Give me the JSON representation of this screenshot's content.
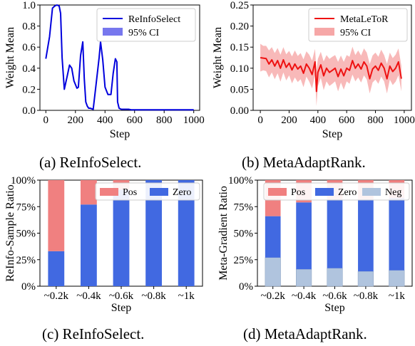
{
  "captions": {
    "a": "(a) ReInfoSelect.",
    "b": "(b) MetaAdaptRank.",
    "c": "(c) ReInfoSelect.",
    "d": "(d) MetaAdaptRank."
  },
  "chart_data": [
    {
      "id": "a",
      "type": "line",
      "xlabel": "Step",
      "ylabel": "Weight Mean",
      "xlim": [
        -40,
        1040
      ],
      "ylim": [
        0,
        1.0
      ],
      "xticks": [
        0,
        200,
        400,
        600,
        800,
        1000
      ],
      "yticks": [
        0.0,
        0.2,
        0.4,
        0.6,
        0.8,
        1.0
      ],
      "ytick_labels": [
        "0.0",
        "0.2",
        "0.4",
        "0.6",
        "0.8",
        "1.0"
      ],
      "legend": "top-right",
      "colors": {
        "line": "#0000dd",
        "band": "#7777ee"
      },
      "series": [
        {
          "name": "ReInfoSelect",
          "band_name": "95% CI",
          "x": [
            0,
            25,
            45,
            60,
            75,
            90,
            100,
            110,
            125,
            145,
            160,
            175,
            190,
            210,
            220,
            235,
            250,
            260,
            270,
            280,
            290,
            300,
            320,
            340,
            360,
            370,
            385,
            400,
            420,
            440,
            455,
            470,
            480,
            485,
            495,
            510,
            525,
            540,
            560,
            580,
            600,
            650,
            700,
            750,
            800,
            850,
            900,
            950,
            1000
          ],
          "y": [
            0.49,
            0.7,
            0.97,
            0.99,
            1.0,
            0.99,
            0.92,
            0.5,
            0.2,
            0.33,
            0.43,
            0.4,
            0.28,
            0.21,
            0.22,
            0.52,
            0.65,
            0.3,
            0.08,
            0.04,
            0.02,
            0.02,
            0.01,
            0.25,
            0.5,
            0.65,
            0.48,
            0.22,
            0.15,
            0.15,
            0.35,
            0.49,
            0.46,
            0.08,
            0.02,
            0.01,
            0.01,
            0.01,
            0.01,
            0.005,
            0.005,
            0.005,
            0.005,
            0.005,
            0.005,
            0.005,
            0.005,
            0.005,
            0.005
          ]
        }
      ]
    },
    {
      "id": "b",
      "type": "line",
      "xlabel": "Step",
      "ylabel": "Weight Mean",
      "xlim": [
        -50,
        1050
      ],
      "ylim": [
        0,
        0.25
      ],
      "xticks": [
        0,
        200,
        400,
        600,
        800,
        1000
      ],
      "yticks": [
        0.0,
        0.05,
        0.1,
        0.15,
        0.2,
        0.25
      ],
      "ytick_labels": [
        "0.00",
        "0.05",
        "0.10",
        "0.15",
        "0.20",
        "0.25"
      ],
      "legend": "top-right",
      "colors": {
        "line": "#ee1111",
        "band": "#f6a7a7"
      },
      "series": [
        {
          "name": "MetaLeToR",
          "band_name": "95% CI",
          "x": [
            0,
            20,
            40,
            60,
            80,
            100,
            120,
            140,
            160,
            180,
            200,
            220,
            240,
            260,
            280,
            300,
            320,
            340,
            360,
            380,
            390,
            400,
            420,
            440,
            460,
            480,
            500,
            520,
            540,
            560,
            580,
            600,
            620,
            640,
            660,
            680,
            700,
            720,
            740,
            760,
            780,
            800,
            820,
            840,
            860,
            880,
            900,
            920,
            940,
            960,
            980
          ],
          "y": [
            0.125,
            0.124,
            0.123,
            0.11,
            0.12,
            0.105,
            0.118,
            0.1,
            0.12,
            0.102,
            0.112,
            0.096,
            0.11,
            0.098,
            0.105,
            0.088,
            0.11,
            0.1,
            0.085,
            0.115,
            0.045,
            0.09,
            0.108,
            0.082,
            0.1,
            0.09,
            0.095,
            0.1,
            0.08,
            0.098,
            0.082,
            0.1,
            0.095,
            0.118,
            0.1,
            0.11,
            0.098,
            0.115,
            0.105,
            0.075,
            0.098,
            0.105,
            0.095,
            0.112,
            0.1,
            0.075,
            0.105,
            0.092,
            0.1,
            0.115,
            0.075
          ],
          "lower": [
            0.092,
            0.095,
            0.093,
            0.078,
            0.09,
            0.074,
            0.088,
            0.068,
            0.09,
            0.071,
            0.083,
            0.064,
            0.078,
            0.067,
            0.074,
            0.055,
            0.08,
            0.068,
            0.052,
            0.084,
            0.01,
            0.058,
            0.077,
            0.048,
            0.069,
            0.058,
            0.063,
            0.069,
            0.045,
            0.066,
            0.049,
            0.069,
            0.063,
            0.085,
            0.069,
            0.078,
            0.066,
            0.083,
            0.073,
            0.04,
            0.066,
            0.073,
            0.063,
            0.08,
            0.069,
            0.04,
            0.073,
            0.06,
            0.068,
            0.083,
            0.045
          ],
          "upper": [
            0.158,
            0.153,
            0.153,
            0.142,
            0.15,
            0.136,
            0.148,
            0.132,
            0.15,
            0.133,
            0.141,
            0.128,
            0.142,
            0.129,
            0.136,
            0.121,
            0.14,
            0.132,
            0.118,
            0.146,
            0.095,
            0.122,
            0.139,
            0.116,
            0.131,
            0.122,
            0.127,
            0.131,
            0.115,
            0.13,
            0.115,
            0.131,
            0.127,
            0.151,
            0.131,
            0.142,
            0.13,
            0.147,
            0.137,
            0.11,
            0.13,
            0.137,
            0.127,
            0.144,
            0.131,
            0.11,
            0.137,
            0.124,
            0.132,
            0.147,
            0.105
          ]
        }
      ]
    },
    {
      "id": "c",
      "type": "bar",
      "stacked": true,
      "xlabel": "Step",
      "ylabel": "ReInfo-Sample Ratio",
      "ylim": [
        0,
        1
      ],
      "yticks": [
        0.0,
        0.25,
        0.5,
        0.75,
        1.0
      ],
      "ytick_labels": [
        "0%",
        "25%",
        "50%",
        "75%",
        "100%"
      ],
      "categories": [
        "~0.2k",
        "~0.4k",
        "~0.6k",
        "~0.8k",
        "~1k"
      ],
      "legend": "top",
      "series": [
        {
          "name": "Zero",
          "color": "#4169e1",
          "values": [
            0.33,
            0.77,
            0.91,
            1.0,
            1.0
          ]
        },
        {
          "name": "Pos",
          "color": "#f08080",
          "values": [
            0.67,
            0.23,
            0.09,
            0.0,
            0.0
          ]
        }
      ],
      "legend_order": [
        "Pos",
        "Zero"
      ]
    },
    {
      "id": "d",
      "type": "bar",
      "stacked": true,
      "xlabel": "Step",
      "ylabel": "Meta-Gradient Ratio",
      "ylim": [
        0,
        1
      ],
      "yticks": [
        0.0,
        0.25,
        0.5,
        0.75,
        1.0
      ],
      "ytick_labels": [
        "0%",
        "25%",
        "50%",
        "75%",
        "100%"
      ],
      "categories": [
        "~0.2k",
        "~0.4k",
        "~0.6k",
        "~0.8k",
        "~1k"
      ],
      "legend": "top",
      "series": [
        {
          "name": "Neg",
          "color": "#b0c4de",
          "values": [
            0.27,
            0.16,
            0.17,
            0.14,
            0.15
          ]
        },
        {
          "name": "Zero",
          "color": "#4169e1",
          "values": [
            0.39,
            0.63,
            0.65,
            0.68,
            0.68
          ]
        },
        {
          "name": "Pos",
          "color": "#f08080",
          "values": [
            0.34,
            0.21,
            0.18,
            0.18,
            0.17
          ]
        }
      ],
      "legend_order": [
        "Pos",
        "Zero",
        "Neg"
      ]
    }
  ]
}
